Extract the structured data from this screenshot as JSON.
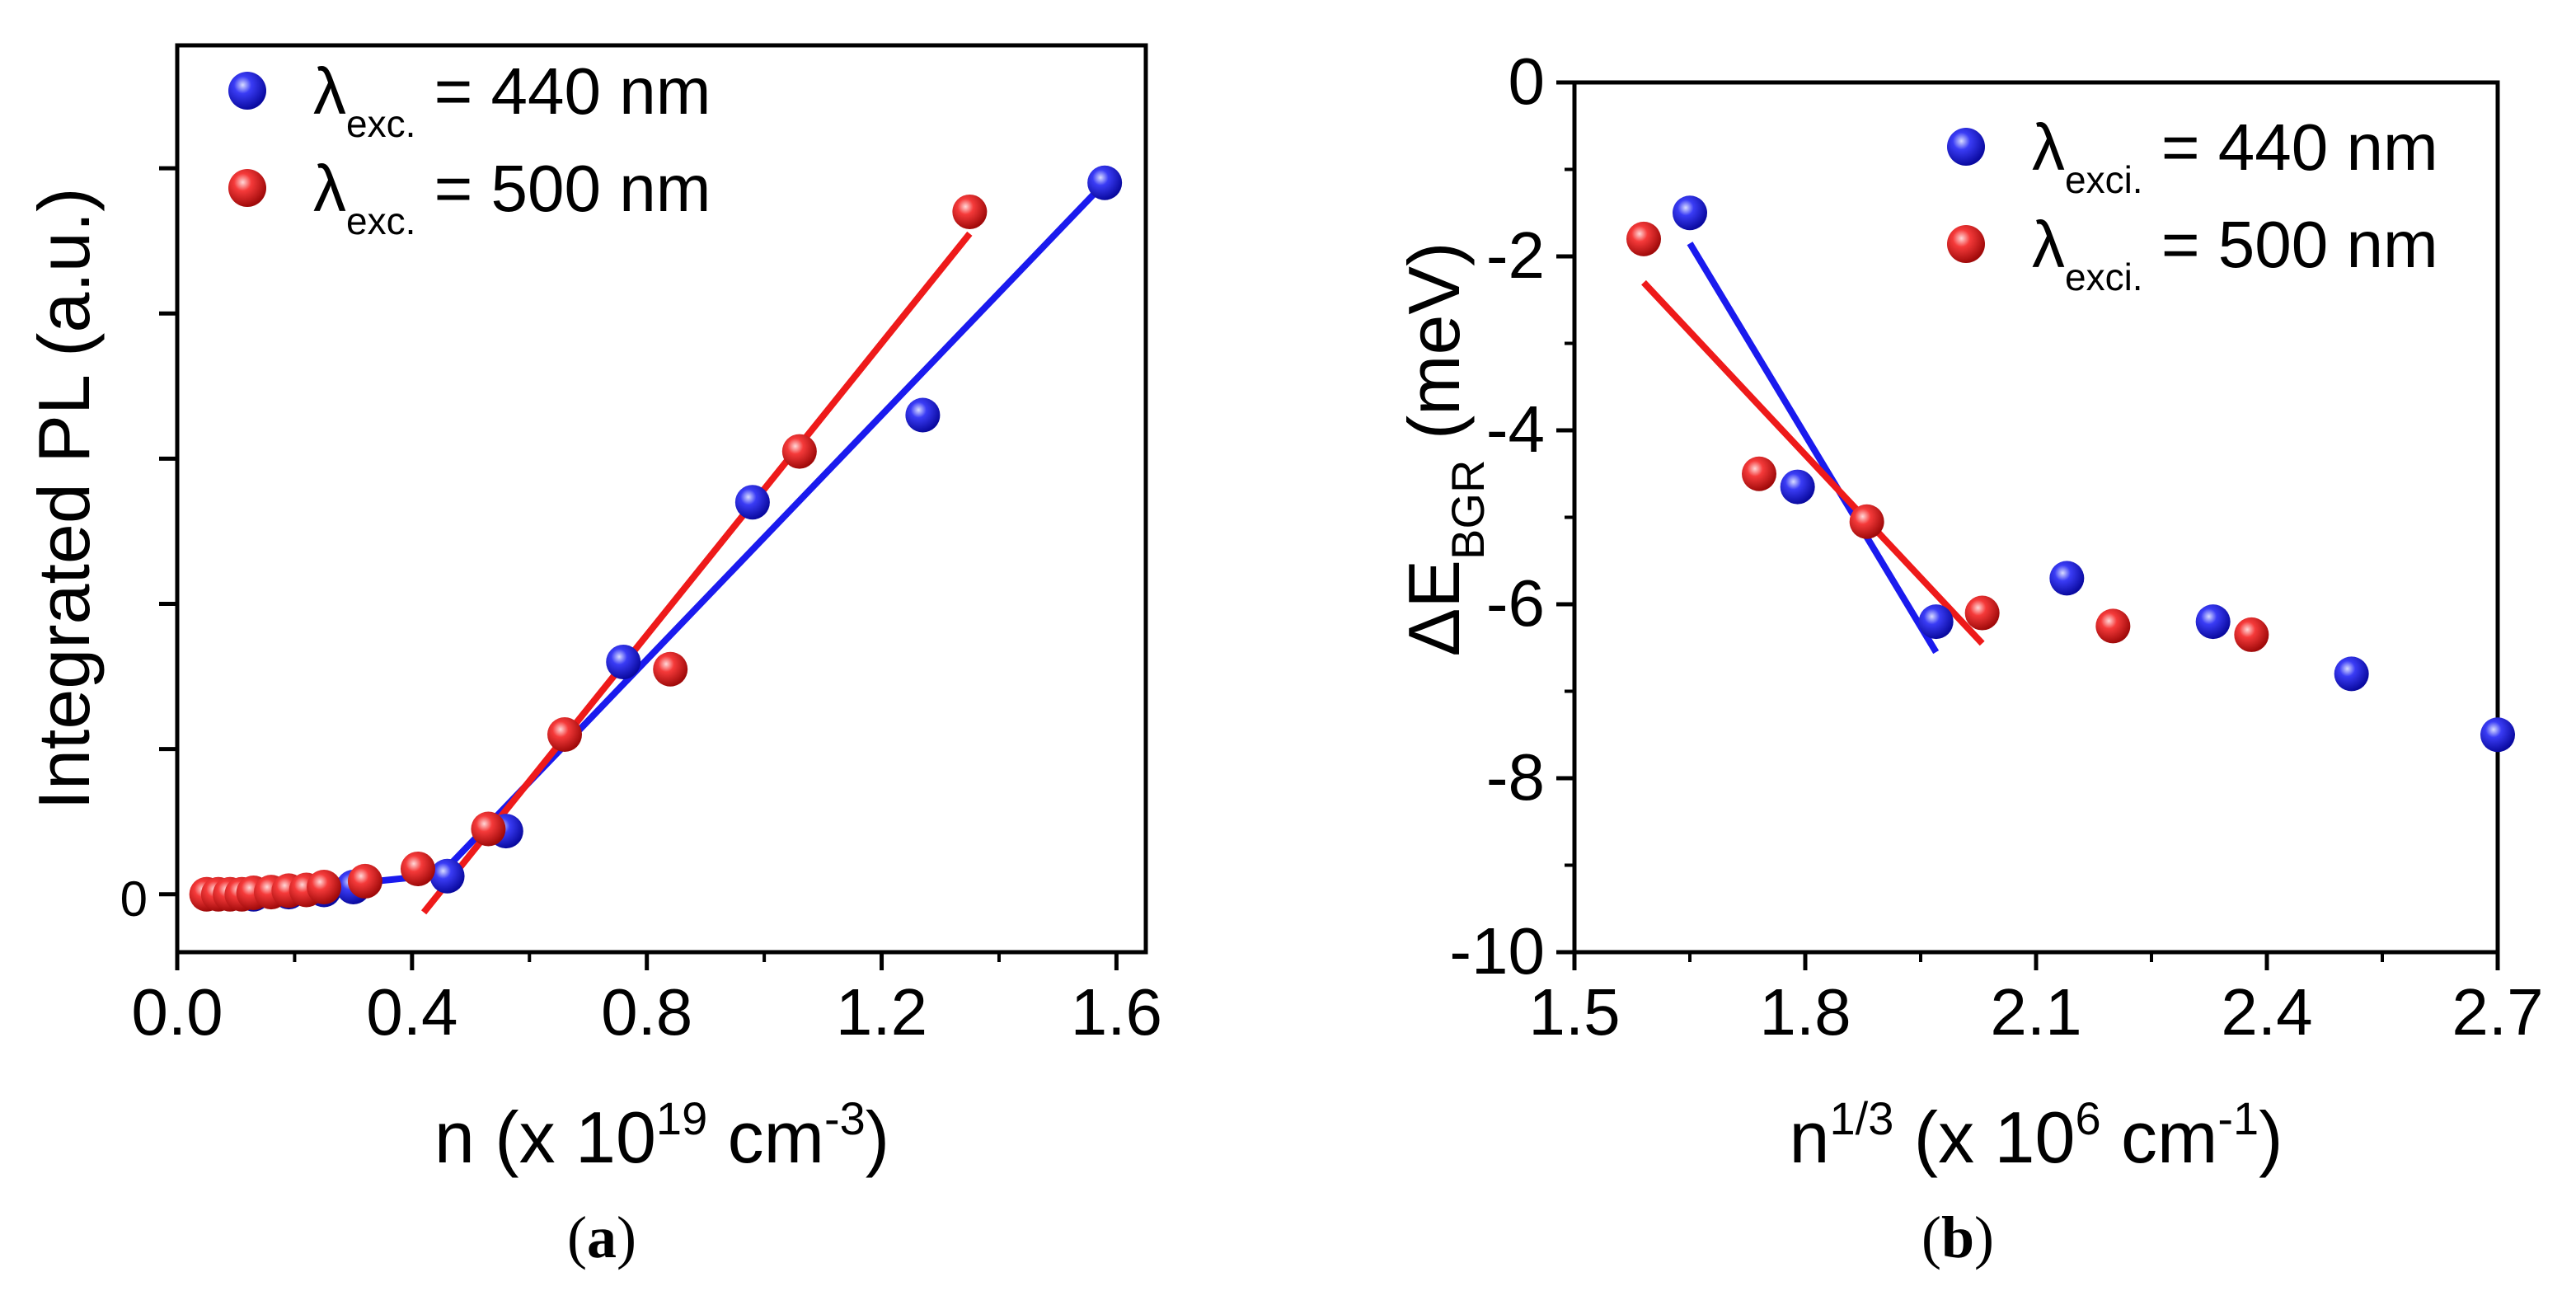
{
  "chart_data": [
    {
      "type": "scatter",
      "panel_label": "a",
      "xlabel": {
        "base": "n (x 10",
        "sup": "19",
        "mid": " cm",
        "sup2": "-3",
        "end": ")"
      },
      "ylabel": "Integrated PL (a.u.)",
      "xlim": [
        0.0,
        1.65
      ],
      "ylim": [
        -0.4,
        11.5
      ],
      "xticks": [
        0.0,
        0.4,
        0.8,
        1.2,
        1.6
      ],
      "xtick_labels": [
        "0.0",
        "0.4",
        "0.8",
        "1.2",
        "1.6"
      ],
      "yticks": [
        0,
        2,
        4,
        6,
        8,
        10
      ],
      "ytick_labels": [
        "0",
        "",
        "",
        "",
        "",
        ""
      ],
      "series": [
        {
          "name": "λexc. = 440 nm",
          "legend_symbol": "λ",
          "legend_sub": "exc.",
          "legend_tail": " = 440 nm",
          "color": "#1a1aee",
          "points": [
            [
              0.13,
              0.0
            ],
            [
              0.19,
              0.03
            ],
            [
              0.25,
              0.06
            ],
            [
              0.3,
              0.1
            ],
            [
              0.46,
              0.25
            ],
            [
              0.56,
              0.87
            ],
            [
              0.76,
              3.2
            ],
            [
              0.98,
              5.4
            ],
            [
              1.27,
              6.6
            ],
            [
              1.58,
              9.8
            ]
          ],
          "fits": [
            [
              [
                0.12,
                0.0
              ],
              [
                0.46,
                0.28
              ]
            ],
            [
              [
                0.44,
                0.2
              ],
              [
                1.58,
                9.8
              ]
            ]
          ]
        },
        {
          "name": "λexc. = 500 nm",
          "legend_symbol": "λ",
          "legend_sub": "exc.",
          "legend_tail": " = 500 nm",
          "color": "#ee1a1a",
          "points": [
            [
              0.05,
              0.0
            ],
            [
              0.07,
              0.0
            ],
            [
              0.09,
              0.0
            ],
            [
              0.11,
              0.0
            ],
            [
              0.13,
              0.02
            ],
            [
              0.16,
              0.03
            ],
            [
              0.19,
              0.05
            ],
            [
              0.22,
              0.06
            ],
            [
              0.25,
              0.1
            ],
            [
              0.32,
              0.18
            ],
            [
              0.41,
              0.35
            ],
            [
              0.53,
              0.9
            ],
            [
              0.66,
              2.2
            ],
            [
              0.84,
              3.1
            ],
            [
              1.06,
              6.1
            ],
            [
              1.35,
              9.4
            ]
          ],
          "fits": [
            [
              [
                0.42,
                -0.25
              ],
              [
                1.35,
                9.1
              ]
            ]
          ]
        }
      ]
    },
    {
      "type": "scatter",
      "panel_label": "b",
      "xlabel": {
        "base": "n",
        "sup": "1/3",
        "mid": " (x 10",
        "sup2": "6",
        "end": " cm",
        "sup3": "-1",
        "end2": ")"
      },
      "ylabel": {
        "base": "ΔE",
        "sub": "BGR",
        "end": " (meV)"
      },
      "xlim": [
        1.5,
        2.7
      ],
      "ylim": [
        -10,
        0
      ],
      "xticks": [
        1.5,
        1.8,
        2.1,
        2.4,
        2.7
      ],
      "xtick_labels": [
        "1.5",
        "1.8",
        "2.1",
        "2.4",
        "2.7"
      ],
      "yticks": [
        0,
        -2,
        -4,
        -6,
        -8,
        -10
      ],
      "ytick_labels": [
        "0",
        "-2",
        "-4",
        "-6",
        "-8",
        "-10"
      ],
      "series": [
        {
          "name": "λexci. = 440 nm",
          "legend_symbol": "λ",
          "legend_sub": "exci.",
          "legend_tail": " = 440 nm",
          "color": "#1a1aee",
          "points": [
            [
              1.65,
              -1.5
            ],
            [
              1.79,
              -4.65
            ],
            [
              1.97,
              -6.2
            ],
            [
              2.14,
              -5.7
            ],
            [
              2.33,
              -6.2
            ],
            [
              2.51,
              -6.8
            ],
            [
              2.7,
              -7.5
            ]
          ],
          "fits": [
            [
              [
                1.65,
                -1.85
              ],
              [
                1.97,
                -6.55
              ]
            ]
          ]
        },
        {
          "name": "λexci. = 500 nm",
          "legend_symbol": "λ",
          "legend_sub": "exci.",
          "legend_tail": " = 500 nm",
          "color": "#ee1a1a",
          "points": [
            [
              1.59,
              -1.8
            ],
            [
              1.74,
              -4.5
            ],
            [
              1.88,
              -5.05
            ],
            [
              2.03,
              -6.1
            ],
            [
              2.2,
              -6.25
            ],
            [
              2.38,
              -6.35
            ]
          ],
          "fits": [
            [
              [
                1.59,
                -2.3
              ],
              [
                2.03,
                -6.45
              ]
            ]
          ]
        }
      ]
    }
  ]
}
